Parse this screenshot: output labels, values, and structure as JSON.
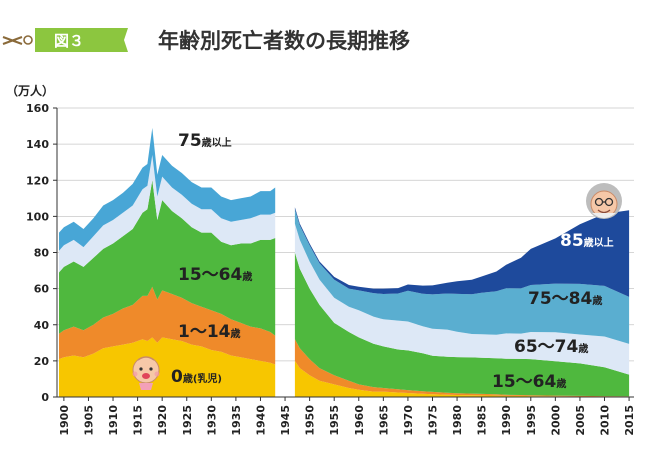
{
  "header": {
    "badge": "図３",
    "title": "年齢別死亡者数の長期推移"
  },
  "colors": {
    "badge": "#8cc63f",
    "c0": "#f7c600",
    "c1_14": "#ef8a2a",
    "c15_64": "#4fb83e",
    "c65_74": "#dde8f6",
    "c75_84": "#5aaed0",
    "c85": "#1e4a9c",
    "c75plus": "#48a6d6"
  },
  "chart_data": {
    "type": "area",
    "stacked": true,
    "title": "年齢別死亡者数の長期推移",
    "ylabel": "（万人）",
    "xlabel": "",
    "ylim": [
      0,
      160
    ],
    "y_ticks": [
      0,
      20,
      40,
      60,
      80,
      100,
      120,
      140,
      160
    ],
    "x_ticks": [
      1900,
      1905,
      1910,
      1915,
      1920,
      1925,
      1930,
      1935,
      1940,
      1945,
      1950,
      1955,
      1960,
      1965,
      1970,
      1975,
      1980,
      1985,
      1990,
      1995,
      2000,
      2005,
      2010,
      2015
    ],
    "gap": [
      1944,
      1946
    ],
    "legend_labels": [
      {
        "id": "age0",
        "text": "0",
        "suffix": "歳(乳児)"
      },
      {
        "id": "age1_14",
        "text": "1〜14",
        "suffix": "歳"
      },
      {
        "id": "age15_64_pre",
        "text": "15〜64",
        "suffix": "歳"
      },
      {
        "id": "age75plus",
        "text": "75",
        "suffix": "歳以上"
      },
      {
        "id": "age85plus",
        "text": "85",
        "suffix": "歳以上"
      },
      {
        "id": "age75_84",
        "text": "75〜84",
        "suffix": "歳"
      },
      {
        "id": "age65_74",
        "text": "65〜74",
        "suffix": "歳"
      },
      {
        "id": "age15_64_post",
        "text": "15〜64",
        "suffix": "歳"
      }
    ],
    "prewar": {
      "x": [
        1899,
        1900,
        1902,
        1904,
        1906,
        1908,
        1910,
        1912,
        1914,
        1916,
        1917,
        1918,
        1919,
        1920,
        1922,
        1924,
        1926,
        1928,
        1930,
        1932,
        1934,
        1936,
        1938,
        1940,
        1942,
        1943
      ],
      "series": [
        {
          "name": "0歳(乳児)",
          "color_key": "c0",
          "values": [
            21,
            22,
            23,
            22,
            24,
            27,
            28,
            29,
            30,
            32,
            31,
            33,
            30,
            33,
            32,
            31,
            29,
            28,
            26,
            25,
            23,
            22,
            21,
            20,
            19,
            18
          ]
        },
        {
          "name": "1〜14歳",
          "color_key": "c1_14",
          "values": [
            14,
            15,
            16,
            15,
            16,
            17,
            18,
            20,
            21,
            24,
            25,
            28,
            24,
            26,
            25,
            24,
            23,
            22,
            22,
            21,
            20,
            19,
            18,
            18,
            17,
            16
          ]
        },
        {
          "name": "15〜64歳",
          "color_key": "c15_64",
          "values": [
            34,
            35,
            36,
            35,
            37,
            38,
            39,
            40,
            42,
            46,
            48,
            59,
            44,
            50,
            46,
            44,
            42,
            41,
            43,
            40,
            41,
            44,
            46,
            49,
            51,
            54
          ]
        },
        {
          "name": "65〜74歳",
          "color_key": "c65_74",
          "values": [
            12,
            12,
            12,
            11,
            12,
            13,
            13,
            13,
            13,
            13,
            13,
            14,
            13,
            13,
            13,
            13,
            13,
            13,
            13,
            13,
            13,
            13,
            14,
            14,
            14,
            14
          ]
        },
        {
          "name": "75歳以上",
          "color_key": "c75plus",
          "values": [
            10,
            10,
            10,
            10,
            10,
            11,
            11,
            11,
            12,
            12,
            12,
            15,
            12,
            12,
            12,
            12,
            12,
            12,
            12,
            12,
            12,
            12,
            12,
            13,
            13,
            14
          ]
        }
      ]
    },
    "postwar": {
      "x": [
        1947,
        1948,
        1950,
        1952,
        1955,
        1958,
        1960,
        1963,
        1965,
        1968,
        1970,
        1973,
        1975,
        1978,
        1980,
        1983,
        1985,
        1988,
        1990,
        1993,
        1995,
        2000,
        2005,
        2010,
        2015
      ],
      "series": [
        {
          "name": "0歳(乳児)",
          "color_key": "c0",
          "values": [
            20,
            16,
            12,
            9,
            7,
            5,
            4,
            3,
            3,
            2.5,
            2.2,
            1.8,
            1.5,
            1.2,
            1.1,
            1,
            0.9,
            0.8,
            0.6,
            0.6,
            0.5,
            0.4,
            0.3,
            0.2,
            0.2
          ]
        },
        {
          "name": "1〜14歳",
          "color_key": "c1_14",
          "values": [
            12,
            11,
            9,
            7,
            5,
            4,
            3,
            2.5,
            2,
            1.8,
            1.6,
            1.4,
            1.3,
            1.1,
            1,
            0.9,
            0.8,
            0.7,
            0.6,
            0.5,
            0.5,
            0.4,
            0.3,
            0.3,
            0.2
          ]
        },
        {
          "name": "15〜64歳",
          "color_key": "c15_64",
          "values": [
            48,
            44,
            39,
            35,
            29,
            27,
            26,
            24,
            23,
            22,
            22,
            21,
            20,
            20,
            20,
            20,
            20,
            20,
            20,
            20,
            20,
            19,
            18,
            16,
            12
          ]
        },
        {
          "name": "65〜74歳",
          "color_key": "c65_74",
          "values": [
            16,
            16,
            15,
            14,
            14,
            14,
            15,
            15,
            15,
            16,
            16,
            15,
            15,
            15,
            14,
            13,
            13,
            13,
            14,
            14,
            15,
            16,
            16,
            17,
            17
          ]
        },
        {
          "name": "75〜84歳",
          "color_key": "c75_84",
          "values": [
            8,
            8,
            9,
            9,
            10,
            10,
            11,
            13,
            14,
            15,
            17,
            18,
            19,
            20,
            21,
            22,
            23,
            24,
            25,
            25,
            26,
            27,
            28,
            28,
            26
          ]
        },
        {
          "name": "85歳以上",
          "color_key": "c85",
          "values": [
            1,
            1,
            1,
            1,
            1.5,
            2,
            2,
            2.5,
            3,
            3,
            3.5,
            4.5,
            5,
            6,
            7,
            8,
            9,
            11,
            13,
            17,
            20,
            25,
            33,
            40,
            48
          ]
        }
      ]
    }
  }
}
